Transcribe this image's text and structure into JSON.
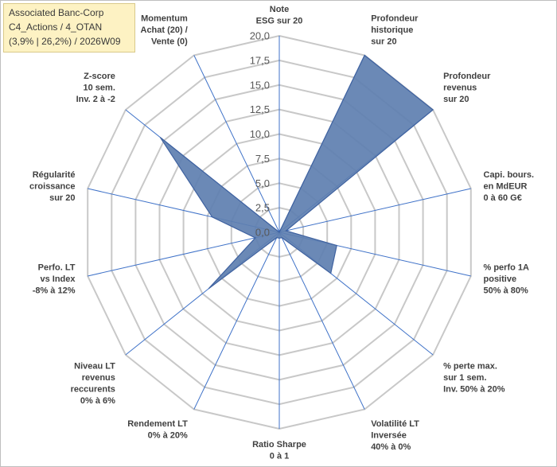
{
  "info": {
    "line1": "Associated Banc-Corp",
    "line2": "C4_Actions / 4_OTAN",
    "line3": "(3,9% | 26,2%) / 2026W09"
  },
  "chart_data": {
    "type": "radar",
    "rlim": [
      0,
      20
    ],
    "ticks": [
      "0,0",
      "2,5",
      "5,0",
      "7,5",
      "10,0",
      "12,5",
      "15,0",
      "17,5",
      "20,0"
    ],
    "tick_values": [
      0,
      2.5,
      5,
      7.5,
      10,
      12.5,
      15,
      17.5,
      20
    ],
    "axes": [
      {
        "label": [
          "Note",
          "ESG sur 20"
        ],
        "value": 0
      },
      {
        "label": [
          "Profondeur",
          "historique",
          "sur 20"
        ],
        "value": 20
      },
      {
        "label": [
          "Profondeur",
          "revenus",
          "sur 20"
        ],
        "value": 20
      },
      {
        "label": [
          "Capi. bours.",
          "en MdEUR",
          "0 à 60 G€"
        ],
        "value": 0.7
      },
      {
        "label": [
          "% perfo 1A",
          "positive",
          "50% à 80%"
        ],
        "value": 6
      },
      {
        "label": [
          "% perte max.",
          "sur 1 sem.",
          "Inv. 50% à 20%"
        ],
        "value": 6.7
      },
      {
        "label": [
          "Volatilité LT",
          "Inversée",
          "40% à 0%"
        ],
        "value": 0.6
      },
      {
        "label": [
          "Ratio Sharpe",
          "0 à 1"
        ],
        "value": 0.6
      },
      {
        "label": [
          "Rendement LT",
          "0% à 20%"
        ],
        "value": 0.6
      },
      {
        "label": [
          "Niveau LT",
          "revenus",
          "reccurents",
          "0% à 6%"
        ],
        "value": 9.2
      },
      {
        "label": [
          "Perfo. LT",
          "vs Index",
          "-8% à 12%"
        ],
        "value": 2.5
      },
      {
        "label": [
          "Régularité",
          "croissance",
          "sur 20"
        ],
        "value": 7
      },
      {
        "label": [
          "Z-score",
          "10 sem.",
          "Inv. 2 à -2"
        ],
        "value": 15.5
      },
      {
        "label": [
          "Momentum",
          "Achat (20) /",
          "Vente (0)"
        ],
        "value": 0
      }
    ],
    "colors": {
      "fill": "#5e7fb0",
      "stroke": "#3f62a0",
      "spoke": "#3f72c8",
      "grid": "#c8c8c8"
    }
  }
}
